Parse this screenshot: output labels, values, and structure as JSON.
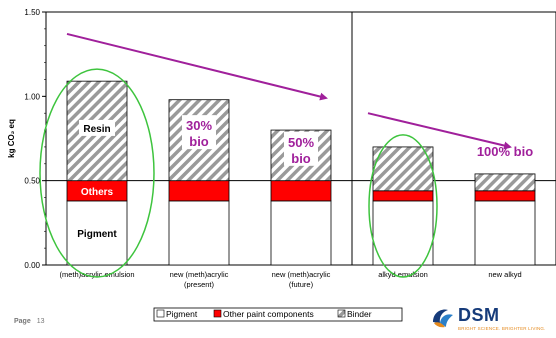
{
  "chart_data": {
    "type": "bar",
    "stacked": true,
    "title": "",
    "ylabel": "kg CO₂ eq",
    "ylim": [
      0,
      1.5
    ],
    "yticks": [
      "0.00",
      "0.50",
      "1.00",
      "1.50"
    ],
    "categories": [
      "(meth)acrylic emulsion",
      "new (meth)acrylic (present)",
      "new (meth)acrylic (future)",
      "alkyd emulsion",
      "new alkyd"
    ],
    "series": [
      {
        "name": "Pigment",
        "color": "#ffffff",
        "values": [
          0.38,
          0.38,
          0.38,
          0.38,
          0.38
        ]
      },
      {
        "name": "Other paint components",
        "color": "#ff0000",
        "values": [
          0.12,
          0.12,
          0.12,
          0.06,
          0.06
        ]
      },
      {
        "name": "Binder",
        "color": "hatched-grey",
        "values": [
          0.59,
          0.48,
          0.3,
          0.26,
          0.1
        ]
      }
    ],
    "segment_labels": {
      "pigment": "Pigment",
      "others": "Others",
      "resin": "Resin"
    },
    "bio_labels": [
      {
        "category": 1,
        "text": [
          "30%",
          "bio"
        ]
      },
      {
        "category": 2,
        "text": [
          "50%",
          "bio"
        ]
      },
      {
        "category": 4,
        "text": [
          "100% bio"
        ]
      }
    ],
    "legend_position": "bottom",
    "reference_line_y": 0.5,
    "group_divider_after": 2,
    "highlight_circles": [
      0,
      3
    ],
    "trend_arrows": [
      {
        "from": 0,
        "to": 2
      },
      {
        "from": 3,
        "to": 4
      }
    ]
  },
  "footer": {
    "page_label": "Page",
    "page_number": "13"
  },
  "logo": {
    "text": "DSM",
    "tagline": "BRIGHT SCIENCE. BRIGHTER LIVING."
  },
  "colors": {
    "accent": "#a0209b",
    "circle": "#3ec43e",
    "brand_blue": "#163b7a",
    "brand_orange": "#e58a1e"
  }
}
